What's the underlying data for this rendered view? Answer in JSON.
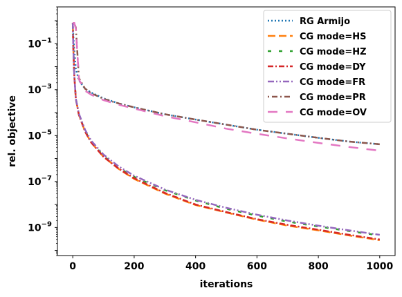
{
  "chart_data": {
    "type": "line",
    "xlabel": "iterations",
    "ylabel": "rel. objective",
    "yscale": "log",
    "xlim": [
      -50,
      1050
    ],
    "ylim": [
      6e-11,
      4
    ],
    "legend_position": "top-right",
    "grid": false,
    "x_ticks": [
      0,
      200,
      400,
      600,
      800,
      1000
    ],
    "y_ticks": [
      {
        "value": 0.1,
        "mantissa": "10",
        "exp": "−1"
      },
      {
        "value": 0.001,
        "mantissa": "10",
        "exp": "−3"
      },
      {
        "value": 1e-05,
        "mantissa": "10",
        "exp": "−5"
      },
      {
        "value": 1e-07,
        "mantissa": "10",
        "exp": "−7"
      },
      {
        "value": 1e-09,
        "mantissa": "10",
        "exp": "−9"
      }
    ],
    "series": [
      {
        "name": "RG Armijo",
        "color": "#1f77b4",
        "dash": "2,3",
        "x": [
          0,
          2,
          5,
          10,
          20,
          40,
          60,
          100,
          150,
          200,
          300,
          400,
          500,
          600,
          700,
          800,
          900,
          1000
        ],
        "y": [
          0.8,
          0.2,
          0.05,
          0.008,
          0.0025,
          0.0011,
          0.00075,
          0.00042,
          0.00025,
          0.00017,
          8.5e-05,
          5e-05,
          3e-05,
          1.8e-05,
          1.2e-05,
          8e-06,
          5.5e-06,
          4.2e-06
        ]
      },
      {
        "name": "CG mode=HS",
        "color": "#ff7f0e",
        "dash": "11,5",
        "x": [
          0,
          2,
          5,
          10,
          20,
          40,
          60,
          100,
          150,
          200,
          300,
          400,
          500,
          600,
          700,
          800,
          900,
          1000
        ],
        "y": [
          0.8,
          0.05,
          0.004,
          0.0004,
          8e-05,
          1.5e-05,
          5e-06,
          1.2e-06,
          3.5e-07,
          1.3e-07,
          3e-08,
          9.5e-09,
          4.5e-09,
          2.2e-09,
          1.2e-09,
          7.5e-10,
          4.5e-10,
          2.8e-10
        ]
      },
      {
        "name": "CG mode=HZ",
        "color": "#2ca02c",
        "dash": "5,11",
        "x": [
          0,
          2,
          5,
          10,
          20,
          40,
          60,
          100,
          150,
          200,
          300,
          400,
          500,
          600,
          700,
          800,
          900,
          1000
        ],
        "y": [
          0.8,
          0.05,
          0.004,
          0.0004,
          8e-05,
          1.6e-05,
          5.5e-06,
          1.3e-06,
          4e-07,
          1.6e-07,
          4.2e-08,
          1.5e-08,
          6.5e-09,
          3.3e-09,
          1.8e-09,
          1.1e-09,
          7e-10,
          4.5e-10
        ]
      },
      {
        "name": "CG mode=DY",
        "color": "#d62728",
        "dash": "8,3,2,3",
        "x": [
          0,
          2,
          5,
          10,
          20,
          40,
          60,
          100,
          150,
          200,
          300,
          400,
          500,
          600,
          700,
          800,
          900,
          1000
        ],
        "y": [
          0.8,
          0.05,
          0.004,
          0.0004,
          8e-05,
          1.5e-05,
          5e-06,
          1.2e-06,
          3.6e-07,
          1.4e-07,
          3.2e-08,
          1e-08,
          4.7e-09,
          2.3e-09,
          1.3e-09,
          8e-10,
          4.8e-10,
          3e-10
        ]
      },
      {
        "name": "CG mode=FR",
        "color": "#9467bd",
        "dash": "9,3,2,3,2,3",
        "x": [
          0,
          2,
          5,
          10,
          20,
          40,
          60,
          100,
          150,
          200,
          300,
          400,
          500,
          600,
          700,
          800,
          900,
          1000
        ],
        "y": [
          0.8,
          0.05,
          0.004,
          0.0004,
          9e-05,
          1.8e-05,
          6e-06,
          1.5e-06,
          4.5e-07,
          1.8e-07,
          4.5e-08,
          1.6e-08,
          7.2e-09,
          3.6e-09,
          2e-09,
          1.2e-09,
          7.5e-10,
          4.8e-10
        ]
      },
      {
        "name": "CG mode=PR",
        "color": "#8c564b",
        "dash": "2,4,8,4",
        "x": [
          0,
          5,
          10,
          20,
          40,
          60,
          100,
          150,
          200,
          300,
          400,
          500,
          600,
          700,
          800,
          900,
          1000
        ],
        "y": [
          0.8,
          0.8,
          0.5,
          0.0032,
          0.0011,
          0.0007,
          0.0004,
          0.00025,
          0.00017,
          8.5e-05,
          5e-05,
          3e-05,
          1.8e-05,
          1.2e-05,
          8e-06,
          5.5e-06,
          4.2e-06
        ]
      },
      {
        "name": "CG mode=OV",
        "color": "#e377c2",
        "dash": "14,12",
        "x": [
          0,
          5,
          10,
          20,
          40,
          60,
          100,
          150,
          200,
          300,
          400,
          500,
          600,
          700,
          800,
          900,
          1000
        ],
        "y": [
          0.8,
          0.8,
          0.45,
          0.0028,
          0.0009,
          0.0006,
          0.00035,
          0.00022,
          0.00015,
          7e-05,
          3.8e-05,
          2e-05,
          1.2e-05,
          7.5e-06,
          4.8e-06,
          3.2e-06,
          2.2e-06
        ]
      }
    ]
  }
}
